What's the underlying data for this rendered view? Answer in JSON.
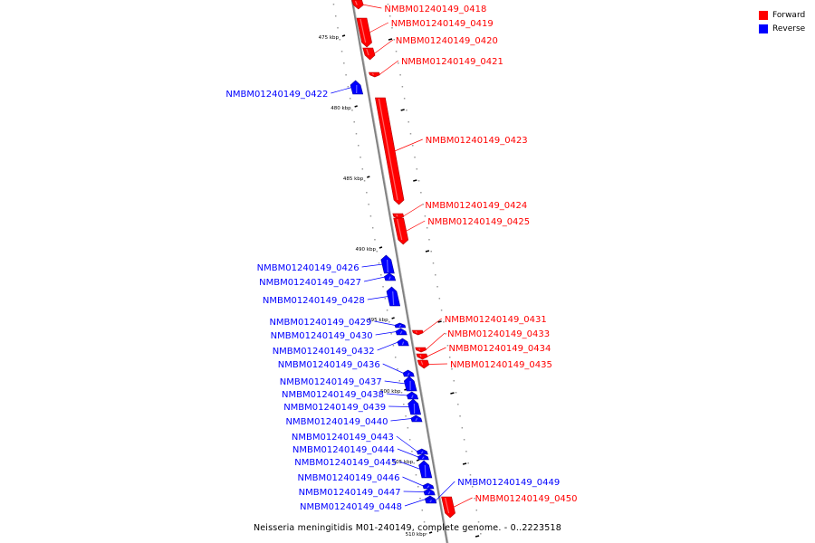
{
  "legend": {
    "items": [
      {
        "label": "Forward",
        "color": "#ff0000"
      },
      {
        "label": "Reverse",
        "color": "#0000ff"
      }
    ]
  },
  "caption": "Neisseria meningitidis M01-240149, complete genome. - 0..2223518",
  "scale_ticks": [
    {
      "label": "475 kbp",
      "kbp": 475
    },
    {
      "label": "480 kbp",
      "kbp": 480
    },
    {
      "label": "485 kbp",
      "kbp": 485
    },
    {
      "label": "490 kbp",
      "kbp": 490
    },
    {
      "label": "495 kbp",
      "kbp": 495
    },
    {
      "label": "500 kbp",
      "kbp": 500
    },
    {
      "label": "505 kbp",
      "kbp": 505
    },
    {
      "label": "510 kbp",
      "kbp": 510
    }
  ],
  "genes": [
    {
      "name": "NMBM01240149_0418",
      "strand": "forward"
    },
    {
      "name": "NMBM01240149_0419",
      "strand": "forward"
    },
    {
      "name": "NMBM01240149_0420",
      "strand": "forward"
    },
    {
      "name": "NMBM01240149_0421",
      "strand": "forward"
    },
    {
      "name": "NMBM01240149_0422",
      "strand": "reverse"
    },
    {
      "name": "NMBM01240149_0423",
      "strand": "forward"
    },
    {
      "name": "NMBM01240149_0424",
      "strand": "forward"
    },
    {
      "name": "NMBM01240149_0425",
      "strand": "forward"
    },
    {
      "name": "NMBM01240149_0426",
      "strand": "reverse"
    },
    {
      "name": "NMBM01240149_0427",
      "strand": "reverse"
    },
    {
      "name": "NMBM01240149_0428",
      "strand": "reverse"
    },
    {
      "name": "NMBM01240149_0429",
      "strand": "reverse"
    },
    {
      "name": "NMBM01240149_0430",
      "strand": "reverse"
    },
    {
      "name": "NMBM01240149_0431",
      "strand": "forward"
    },
    {
      "name": "NMBM01240149_0432",
      "strand": "reverse"
    },
    {
      "name": "NMBM01240149_0433",
      "strand": "forward"
    },
    {
      "name": "NMBM01240149_0434",
      "strand": "forward"
    },
    {
      "name": "NMBM01240149_0435",
      "strand": "forward"
    },
    {
      "name": "NMBM01240149_0436",
      "strand": "reverse"
    },
    {
      "name": "NMBM01240149_0437",
      "strand": "reverse"
    },
    {
      "name": "NMBM01240149_0438",
      "strand": "reverse"
    },
    {
      "name": "NMBM01240149_0439",
      "strand": "reverse"
    },
    {
      "name": "NMBM01240149_0440",
      "strand": "reverse"
    },
    {
      "name": "NMBM01240149_0443",
      "strand": "reverse"
    },
    {
      "name": "NMBM01240149_0444",
      "strand": "reverse"
    },
    {
      "name": "NMBM01240149_0445",
      "strand": "reverse"
    },
    {
      "name": "NMBM01240149_0446",
      "strand": "reverse"
    },
    {
      "name": "NMBM01240149_0447",
      "strand": "reverse"
    },
    {
      "name": "NMBM01240149_0448",
      "strand": "reverse"
    },
    {
      "name": "NMBM01240149_0449",
      "strand": "reverse"
    },
    {
      "name": "NMBM01240149_0450",
      "strand": "forward"
    }
  ]
}
